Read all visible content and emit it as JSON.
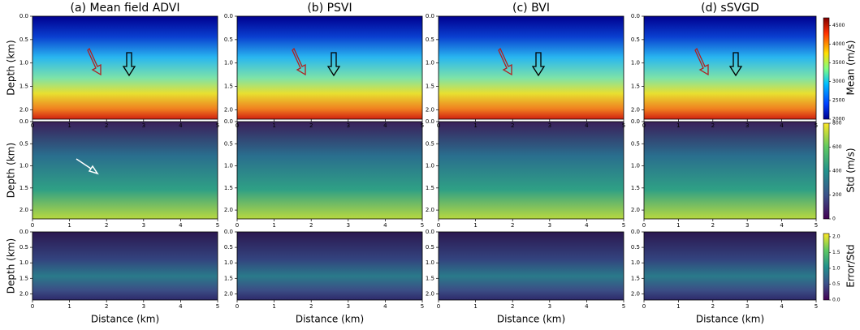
{
  "columns": [
    "(a) Mean field ADVI",
    "(b) PSVI",
    "(c) BVI",
    "(d) sSVGD"
  ],
  "x_axis": {
    "label": "Distance (km)",
    "lim": [
      0,
      5
    ],
    "ticks": [
      0,
      1,
      2,
      3,
      4,
      5
    ]
  },
  "y_axis": {
    "label": "Depth (km)",
    "lim": [
      0,
      2.2
    ],
    "ticks": [
      {
        "value": 0,
        "label": "0.0"
      },
      {
        "value": 0.5,
        "label": "0.5"
      },
      {
        "value": 1,
        "label": "1.0"
      },
      {
        "value": 1.5,
        "label": "1.5"
      },
      {
        "value": 2,
        "label": "2.0"
      }
    ]
  },
  "rows": [
    {
      "colormap": "jet",
      "colorbar": {
        "label": "Mean (m/s)",
        "lim": [
          2000,
          4700
        ],
        "ticks": [
          2000,
          2500,
          3000,
          3500,
          4000,
          4500
        ]
      }
    },
    {
      "colormap": "viridis",
      "colorbar": {
        "label": "Std (m/s)",
        "lim": [
          0,
          800
        ],
        "ticks": [
          0,
          200,
          400,
          600,
          800
        ]
      }
    },
    {
      "colormap": "viridis-dark",
      "colorbar": {
        "label": "Error/Std",
        "lim": [
          0,
          2.1
        ],
        "ticks": [
          {
            "value": 0,
            "label": "0.0"
          },
          {
            "value": 0.5,
            "label": "0.5"
          },
          {
            "value": 1,
            "label": "1.0"
          },
          {
            "value": 1.5,
            "label": "1.5"
          },
          {
            "value": 2,
            "label": "2.0"
          }
        ]
      }
    }
  ]
}
